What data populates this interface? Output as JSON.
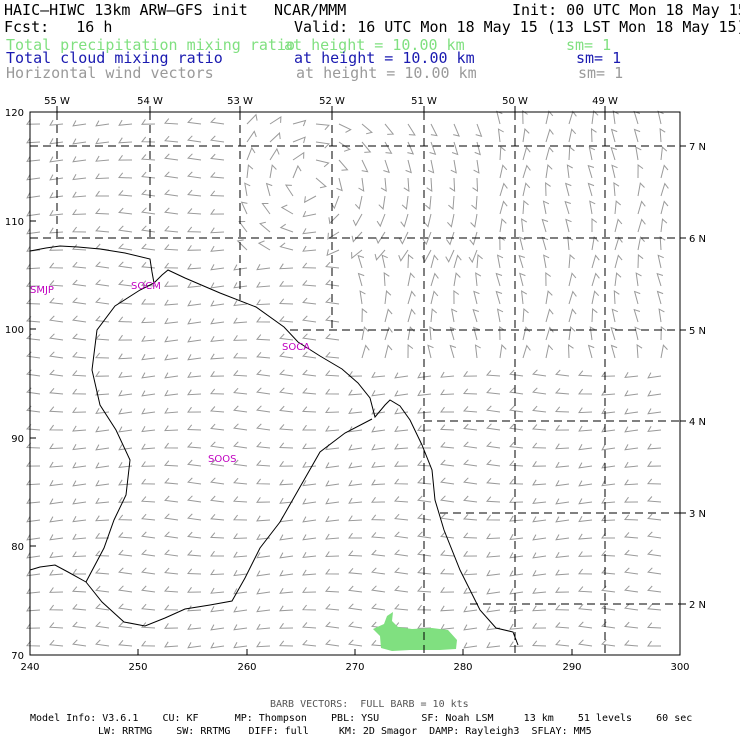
{
  "header": {
    "title": "HAIC–HIWC 13km ARW–GFS init",
    "org": "NCAR/MMM",
    "init": "Init: 00 UTC Mon 18 May 15",
    "fcst": "Fcst:   16 h",
    "valid": "Valid: 16 UTC Mon 18 May 15 (13 LST Mon 18 May 15)"
  },
  "fields": [
    {
      "name": "Total precipitation mixing ratio",
      "height": "at height = 10.00 km",
      "sm": "sm= 1",
      "color": "#80e080"
    },
    {
      "name": "Total cloud mixing ratio",
      "height": "at height = 10.00 km",
      "sm": "sm= 1",
      "color": "#1a1ab0"
    },
    {
      "name": "Horizontal wind vectors",
      "height": "at height = 10.00 km",
      "sm": "sm= 1",
      "color": "#9a9a9a"
    }
  ],
  "x_axis_ticks": [
    "240",
    "250",
    "260",
    "270",
    "280",
    "290",
    "300"
  ],
  "y_axis_ticks": [
    "70",
    "80",
    "90",
    "100",
    "110",
    "120"
  ],
  "longitude_labels": [
    "55 W",
    "54 W",
    "53 W",
    "52 W",
    "51 W",
    "50 W",
    "49 W"
  ],
  "latitude_labels": [
    "7 N",
    "6 N",
    "5 N",
    "4 N",
    "3 N",
    "2 N"
  ],
  "site_labels": [
    "SMJP",
    "SOCM",
    "SOCA",
    "SOOS"
  ],
  "barb_note": "BARB VECTORS:  FULL BARB = 10 kts",
  "model_info": {
    "line1": "Model Info: V3.6.1    CU: KF      MP: Thompson    PBL: YSU       SF: Noah LSM     13 km    51 levels    60 sec",
    "line2": "LW: RRTMG    SW: RRTMG   DIFF: full     KM: 2D Smagor  DAMP: Rayleigh3  SFLAY: MM5"
  },
  "colors": {
    "coastline": "#000000",
    "latlon_grid": "#000000",
    "wind_barbs": "#9a9a9a",
    "precip": "#80e080",
    "site_labels": "#c000c0"
  }
}
